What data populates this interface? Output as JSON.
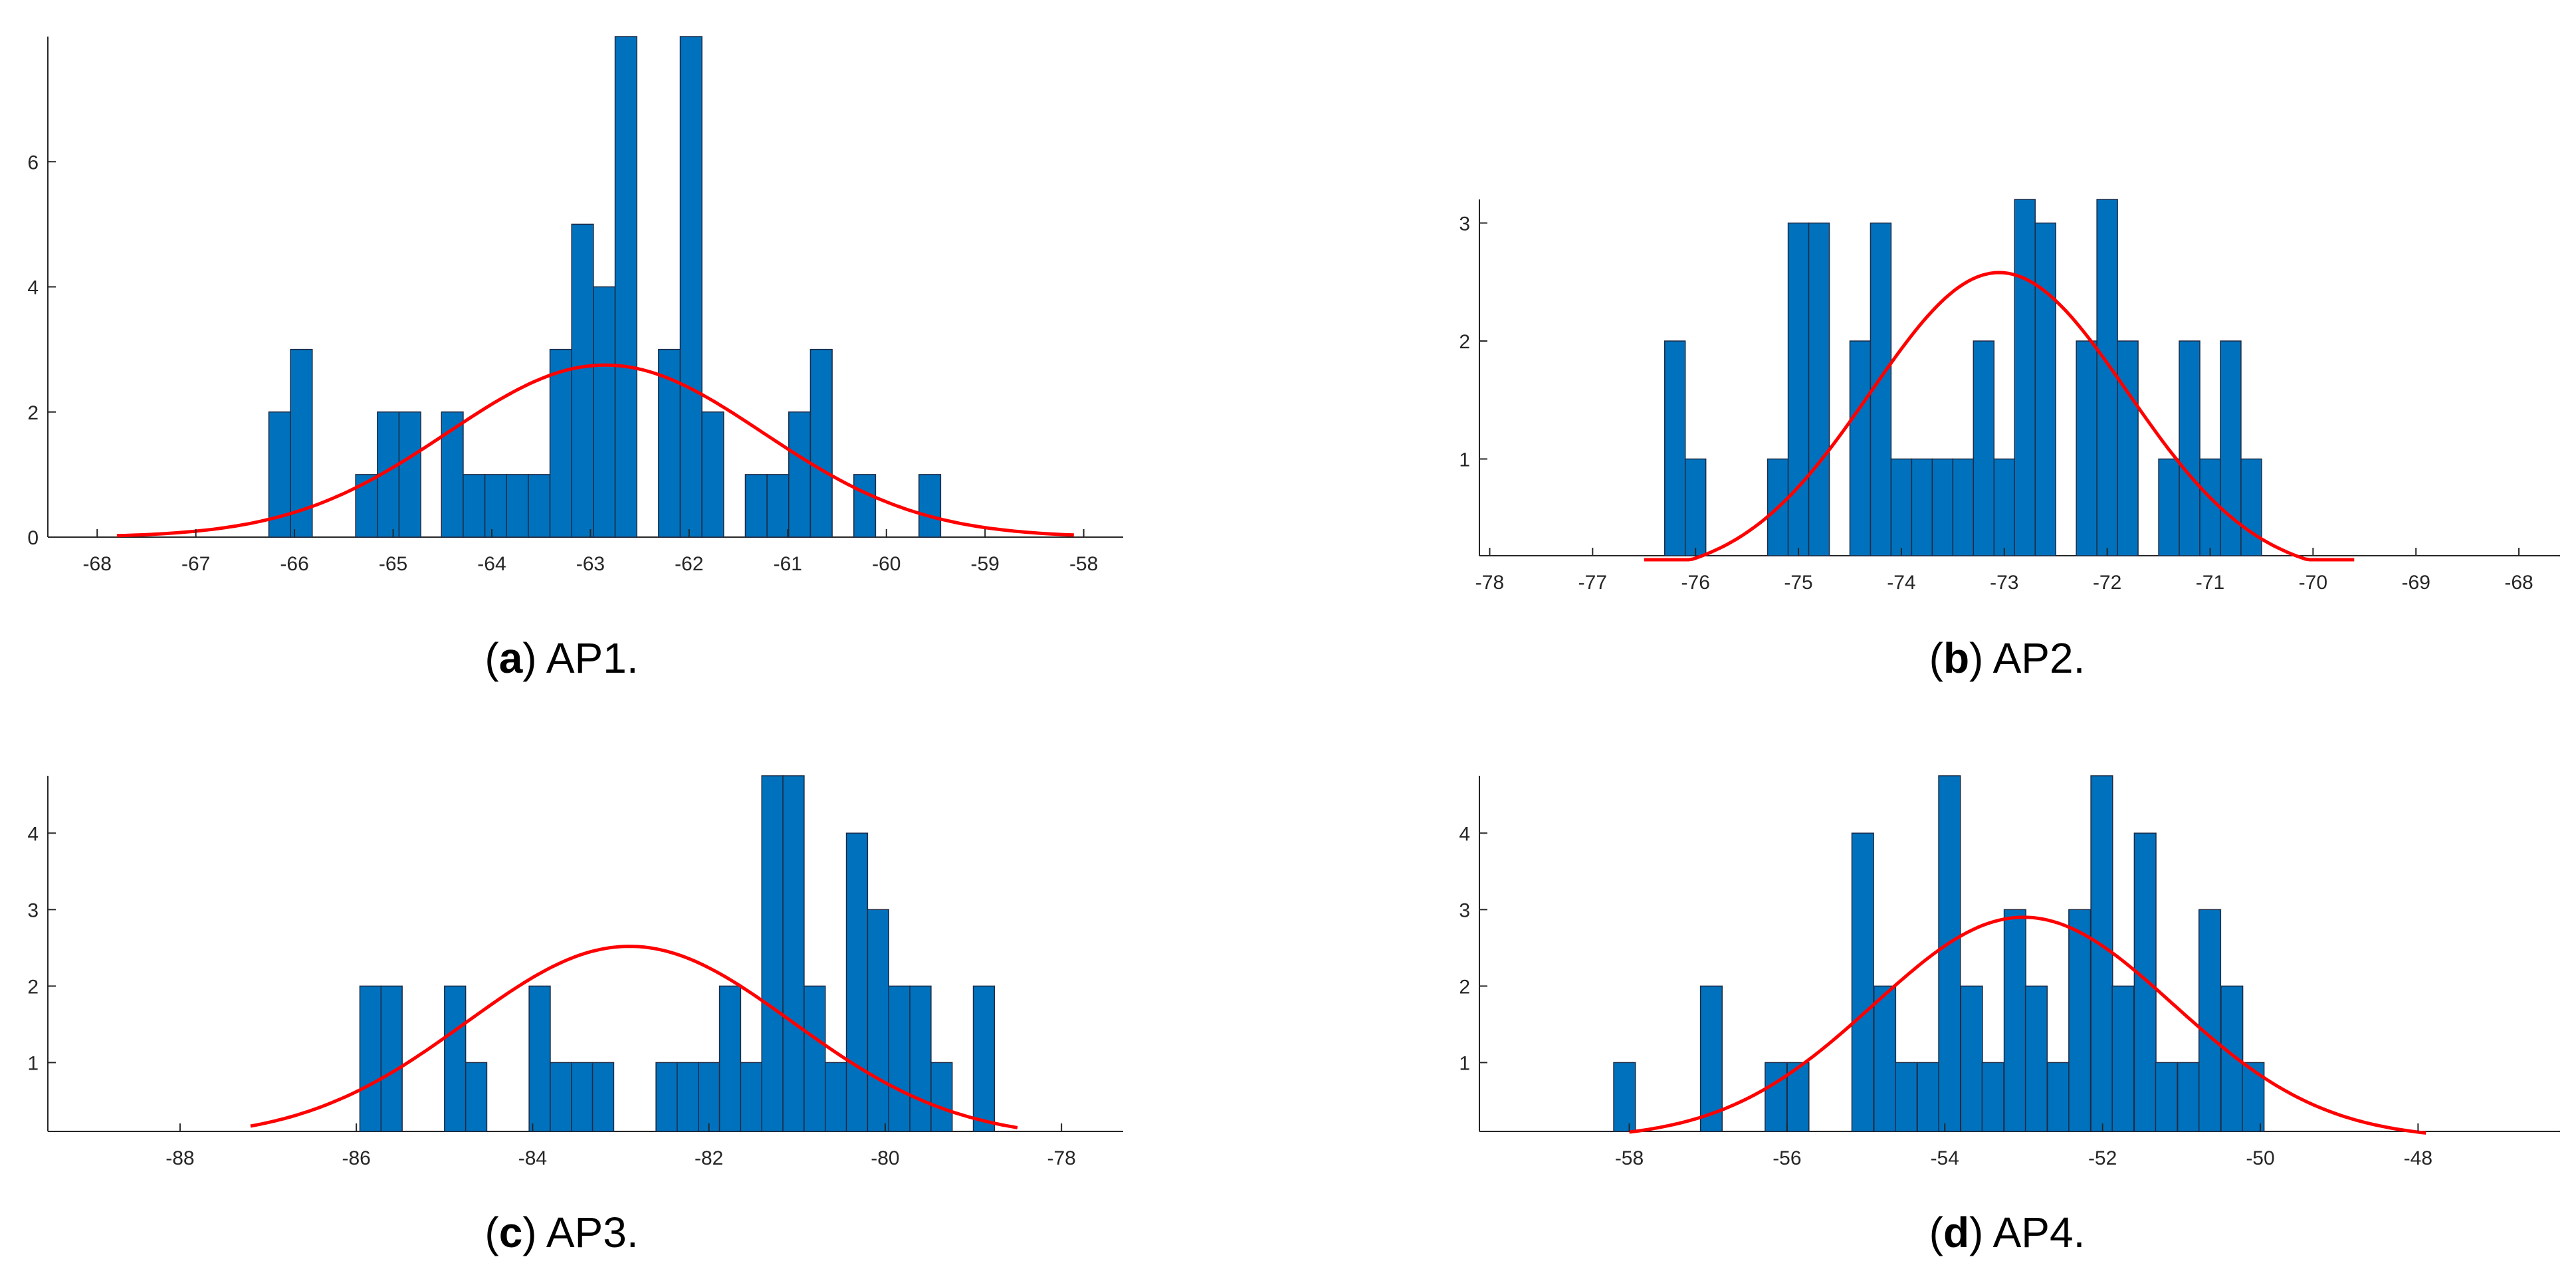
{
  "figure": {
    "chart_data": [
      {
        "type": "bar",
        "subplot": "a",
        "caption_letter": "a",
        "caption_text": "AP1.",
        "title": "",
        "xlabel": "",
        "ylabel": "",
        "xlim": [
          -68.5,
          -57.6
        ],
        "ylim": [
          0,
          8
        ],
        "xticks": [
          -68,
          -67,
          -66,
          -65,
          -64,
          -63,
          -62,
          -61,
          -60,
          -59,
          -58
        ],
        "yticks": [
          0,
          2,
          4,
          6
        ],
        "bar_width": 0.22,
        "bin_centers": [
          -66.15,
          -65.93,
          -65.27,
          -65.05,
          -64.83,
          -64.4,
          -64.18,
          -63.96,
          -63.74,
          -63.52,
          -63.3,
          -63.08,
          -62.86,
          -62.64,
          -62.2,
          -61.98,
          -61.76,
          -61.32,
          -61.1,
          -60.88,
          -60.66,
          -60.22,
          -59.56
        ],
        "counts": [
          2,
          3,
          1,
          2,
          2,
          2,
          1,
          1,
          1,
          1,
          3,
          5,
          4,
          8,
          3,
          8,
          2,
          1,
          1,
          2,
          3,
          1,
          1
        ],
        "bar_color": "#0072BD",
        "edge_color": "#1f2a44",
        "fit": {
          "type": "normal",
          "mean": -62.85,
          "sd": 1.6,
          "peak": 2.75,
          "x_range": [
            -67.8,
            -58.1
          ],
          "color": "#ff0000"
        }
      },
      {
        "type": "bar",
        "subplot": "b",
        "caption_letter": "b",
        "caption_text": "AP2.",
        "title": "",
        "xlabel": "",
        "ylabel": "",
        "xlim": [
          -78.1,
          -67.6
        ],
        "ylim": [
          0.18,
          3.2
        ],
        "xticks": [
          -78,
          -77,
          -76,
          -75,
          -74,
          -73,
          -72,
          -71,
          -70,
          -69,
          -68
        ],
        "yticks": [
          1,
          2,
          3
        ],
        "bar_width": 0.2,
        "bin_centers": [
          -76.2,
          -76.0,
          -75.2,
          -75.0,
          -74.8,
          -74.4,
          -74.2,
          -74.0,
          -73.8,
          -73.6,
          -73.4,
          -73.2,
          -73.0,
          -72.8,
          -72.6,
          -72.2,
          -72.0,
          -71.8,
          -71.4,
          -71.2,
          -71.0,
          -70.8,
          -70.6
        ],
        "counts": [
          2,
          1,
          1,
          3,
          3,
          2,
          3,
          1,
          1,
          1,
          1,
          2,
          1,
          3.2,
          3,
          2,
          3.2,
          2,
          1,
          2,
          1,
          2,
          1
        ],
        "bar_color": "#0072BD",
        "edge_color": "#1f2a44",
        "fit": {
          "type": "normal",
          "mean": -73.05,
          "sd": 1.25,
          "peak": 2.58,
          "x_range": [
            -76.5,
            -69.6
          ],
          "color": "#ff0000"
        }
      },
      {
        "type": "bar",
        "subplot": "c",
        "caption_letter": "c",
        "caption_text": "AP3.",
        "title": "",
        "xlabel": "",
        "ylabel": "",
        "xlim": [
          -89.5,
          -77.3
        ],
        "ylim": [
          0.1,
          4.75
        ],
        "xticks": [
          -88,
          -86,
          -84,
          -82,
          -80,
          -78
        ],
        "yticks": [
          1,
          2,
          3,
          4
        ],
        "bar_width": 0.24,
        "bin_centers": [
          -85.84,
          -85.6,
          -84.88,
          -84.64,
          -83.92,
          -83.68,
          -83.44,
          -83.2,
          -82.48,
          -82.24,
          -82.0,
          -81.76,
          -81.52,
          -81.28,
          -81.04,
          -80.8,
          -80.56,
          -80.32,
          -80.08,
          -79.84,
          -79.6,
          -79.36,
          -78.88
        ],
        "counts": [
          2,
          2,
          2,
          1,
          2,
          1,
          1,
          1,
          1,
          1,
          1,
          2,
          1,
          4.75,
          4.75,
          2,
          1,
          4,
          3,
          2,
          2,
          1,
          2
        ],
        "bar_color": "#0072BD",
        "edge_color": "#1f2a44",
        "fit": {
          "type": "normal",
          "mean": -82.9,
          "sd": 1.85,
          "peak": 2.52,
          "x_range": [
            -87.2,
            -78.5
          ],
          "color": "#ff0000"
        }
      },
      {
        "type": "bar",
        "subplot": "d",
        "caption_letter": "d",
        "caption_text": "AP4.",
        "title": "",
        "xlabel": "",
        "ylabel": "",
        "xlim": [
          -59.9,
          -46.2
        ],
        "ylim": [
          0.1,
          4.75
        ],
        "xticks": [
          -58,
          -56,
          -54,
          -52,
          -50,
          -48
        ],
        "yticks": [
          1,
          2,
          3,
          4
        ],
        "bar_width": 0.275,
        "bin_centers": [
          -58.06,
          -56.96,
          -56.14,
          -55.86,
          -55.04,
          -54.76,
          -54.49,
          -54.21,
          -53.94,
          -53.66,
          -53.39,
          -53.11,
          -52.84,
          -52.56,
          -52.29,
          -52.01,
          -51.74,
          -51.46,
          -51.19,
          -50.91,
          -50.64,
          -50.36,
          -50.09
        ],
        "counts": [
          1,
          2,
          1,
          1,
          4,
          2,
          1,
          1,
          4.75,
          2,
          1,
          3,
          2,
          1,
          3,
          4.75,
          2,
          4,
          1,
          1,
          3,
          2,
          1
        ],
        "bar_color": "#0072BD",
        "edge_color": "#1f2a44",
        "fit": {
          "type": "normal",
          "mean": -53.0,
          "sd": 1.9,
          "peak": 2.9,
          "x_range": [
            -58.0,
            -47.9
          ],
          "color": "#ff0000"
        }
      }
    ]
  }
}
